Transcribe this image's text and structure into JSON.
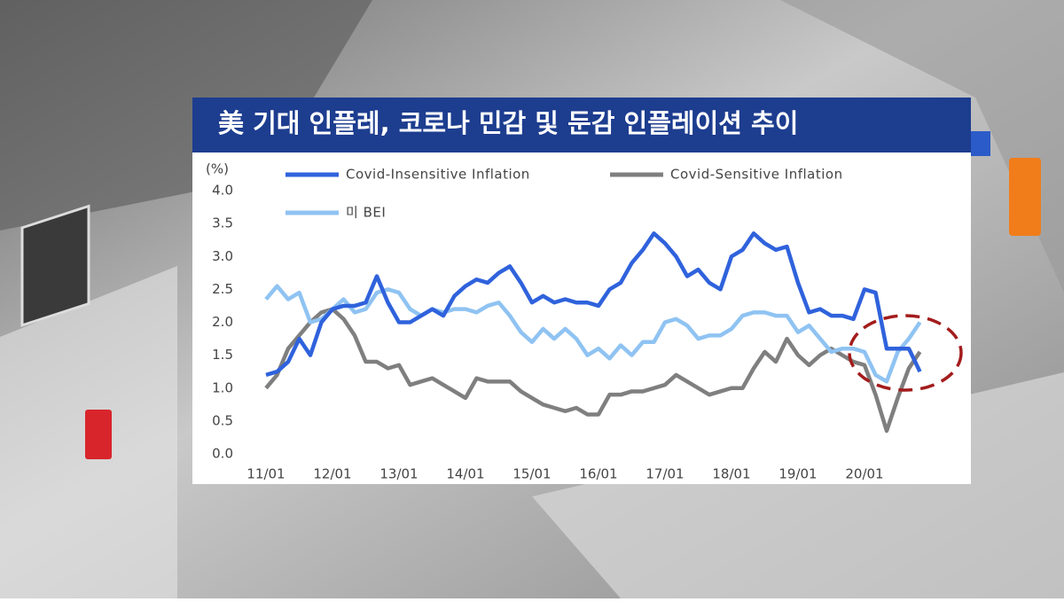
{
  "chart_data": {
    "type": "line",
    "title": "美 기대 인플레, 코로나 민감 및 둔감 인플레이션 추이",
    "y_unit": "(%)",
    "categories": [
      "11/01",
      null,
      null,
      null,
      null,
      null,
      "12/01",
      null,
      null,
      null,
      null,
      null,
      "13/01",
      null,
      null,
      null,
      null,
      null,
      "14/01",
      null,
      null,
      null,
      null,
      null,
      "15/01",
      null,
      null,
      null,
      null,
      null,
      "16/01",
      null,
      null,
      null,
      null,
      null,
      "17/01",
      null,
      null,
      null,
      null,
      null,
      "18/01",
      null,
      null,
      null,
      null,
      null,
      "19/01",
      null,
      null,
      null,
      null,
      null,
      "20/01",
      null,
      null,
      null,
      null,
      null
    ],
    "series": [
      {
        "name": "Covid-Insensitive Inflation",
        "color": "#2f62dc",
        "values": [
          1.2,
          1.25,
          1.4,
          1.75,
          1.5,
          2.0,
          2.2,
          2.25,
          2.25,
          2.3,
          2.7,
          2.3,
          2.0,
          2.0,
          2.1,
          2.2,
          2.1,
          2.4,
          2.55,
          2.65,
          2.6,
          2.75,
          2.85,
          2.6,
          2.3,
          2.4,
          2.3,
          2.35,
          2.3,
          2.3,
          2.25,
          2.5,
          2.6,
          2.9,
          3.1,
          3.35,
          3.2,
          3.0,
          2.7,
          2.8,
          2.6,
          2.5,
          3.0,
          3.1,
          3.35,
          3.2,
          3.1,
          3.15,
          2.6,
          2.15,
          2.2,
          2.1,
          2.1,
          2.05,
          2.5,
          2.45,
          1.6,
          1.6,
          1.6,
          1.25
        ]
      },
      {
        "name": "Covid-Sensitive  Inflation",
        "color": "#7f7f7f",
        "values": [
          1.0,
          1.2,
          1.6,
          1.8,
          2.0,
          2.15,
          2.2,
          2.05,
          1.8,
          1.4,
          1.4,
          1.3,
          1.35,
          1.05,
          1.1,
          1.15,
          1.05,
          0.95,
          0.85,
          1.15,
          1.1,
          1.1,
          1.1,
          0.95,
          0.85,
          0.75,
          0.7,
          0.65,
          0.7,
          0.6,
          0.6,
          0.9,
          0.9,
          0.95,
          0.95,
          1.0,
          1.05,
          1.2,
          1.1,
          1.0,
          0.9,
          0.95,
          1.0,
          1.0,
          1.3,
          1.55,
          1.4,
          1.75,
          1.5,
          1.35,
          1.5,
          1.6,
          1.5,
          1.4,
          1.35,
          0.9,
          0.35,
          0.85,
          1.3,
          1.55
        ]
      },
      {
        "name": "미 BEI",
        "color": "#8fc3f2",
        "values": [
          2.35,
          2.55,
          2.35,
          2.45,
          2.0,
          2.05,
          2.2,
          2.35,
          2.15,
          2.2,
          2.45,
          2.5,
          2.45,
          2.2,
          2.1,
          2.2,
          2.15,
          2.2,
          2.2,
          2.15,
          2.25,
          2.3,
          2.1,
          1.85,
          1.7,
          1.9,
          1.75,
          1.9,
          1.75,
          1.5,
          1.6,
          1.45,
          1.65,
          1.5,
          1.7,
          1.7,
          2.0,
          2.05,
          1.95,
          1.75,
          1.8,
          1.8,
          1.9,
          2.1,
          2.15,
          2.15,
          2.1,
          2.1,
          1.85,
          1.95,
          1.75,
          1.55,
          1.6,
          1.6,
          1.55,
          1.2,
          1.1,
          1.55,
          1.75,
          2.0
        ]
      }
    ],
    "ylim": [
      0,
      4
    ],
    "yticks": [
      {
        "value": 0,
        "label": "0.0"
      },
      0.5,
      {
        "value": 1,
        "label": "1.0"
      },
      1.5,
      {
        "value": 2,
        "label": "2.0"
      },
      2.5,
      {
        "value": 3,
        "label": "3.0"
      },
      3.5,
      {
        "value": 4,
        "label": "4.0"
      }
    ]
  }
}
